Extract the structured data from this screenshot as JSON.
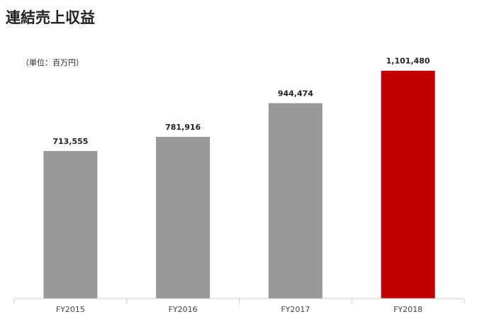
{
  "chart_data": {
    "type": "bar",
    "title": "連結売上収益",
    "subtitle": "（単位：百万円）",
    "categories": [
      "FY2015",
      "FY2016",
      "FY2017",
      "FY2018"
    ],
    "values": [
      713555,
      781916,
      944474,
      1101480
    ],
    "value_labels": [
      "713,555",
      "781,916",
      "944,474",
      "1,101,480"
    ],
    "colors": [
      "#999999",
      "#999999",
      "#999999",
      "#c00000"
    ],
    "ylim": [
      0,
      1200000
    ]
  }
}
